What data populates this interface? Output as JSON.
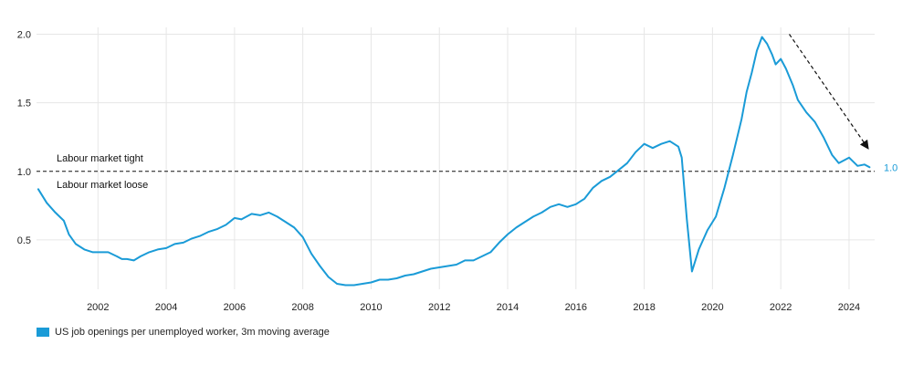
{
  "chart_data": {
    "type": "line",
    "title": "",
    "xlabel": "",
    "ylabel": "",
    "xlim": [
      2000.2,
      2024.75
    ],
    "ylim": [
      0.14,
      2.05
    ],
    "x_ticks": [
      "2002",
      "2004",
      "2006",
      "2008",
      "2010",
      "2012",
      "2014",
      "2016",
      "2018",
      "2020",
      "2022",
      "2024"
    ],
    "y_ticks": [
      "0.5",
      "1.0",
      "1.5",
      "2.0"
    ],
    "grid": true,
    "legend_position": "bottom-left",
    "colors": {
      "series": "#1a9bd7",
      "reference": "#111111",
      "grid": "#e6e6e6"
    },
    "reference_line": {
      "y": 1.0
    },
    "annotations": {
      "tight": "Labour market tight",
      "loose": "Labour market loose",
      "end_value": "1.0"
    },
    "arrow": {
      "from": [
        2022.25,
        2.0
      ],
      "to": [
        2024.55,
        1.17
      ]
    },
    "series": [
      {
        "name": "US job openings per unemployed worker, 3m moving average",
        "points": [
          [
            2000.25,
            0.87
          ],
          [
            2000.5,
            0.77
          ],
          [
            2000.75,
            0.7
          ],
          [
            2001.0,
            0.64
          ],
          [
            2001.15,
            0.54
          ],
          [
            2001.35,
            0.47
          ],
          [
            2001.6,
            0.43
          ],
          [
            2001.85,
            0.41
          ],
          [
            2002.1,
            0.41
          ],
          [
            2002.3,
            0.41
          ],
          [
            2002.55,
            0.38
          ],
          [
            2002.7,
            0.36
          ],
          [
            2002.85,
            0.36
          ],
          [
            2003.05,
            0.35
          ],
          [
            2003.25,
            0.38
          ],
          [
            2003.5,
            0.41
          ],
          [
            2003.75,
            0.43
          ],
          [
            2004.0,
            0.44
          ],
          [
            2004.25,
            0.47
          ],
          [
            2004.5,
            0.48
          ],
          [
            2004.75,
            0.51
          ],
          [
            2005.0,
            0.53
          ],
          [
            2005.25,
            0.56
          ],
          [
            2005.5,
            0.58
          ],
          [
            2005.75,
            0.61
          ],
          [
            2006.0,
            0.66
          ],
          [
            2006.2,
            0.65
          ],
          [
            2006.35,
            0.67
          ],
          [
            2006.5,
            0.69
          ],
          [
            2006.75,
            0.68
          ],
          [
            2007.0,
            0.7
          ],
          [
            2007.25,
            0.67
          ],
          [
            2007.5,
            0.63
          ],
          [
            2007.75,
            0.59
          ],
          [
            2008.0,
            0.52
          ],
          [
            2008.25,
            0.4
          ],
          [
            2008.5,
            0.31
          ],
          [
            2008.75,
            0.23
          ],
          [
            2009.0,
            0.18
          ],
          [
            2009.25,
            0.17
          ],
          [
            2009.5,
            0.17
          ],
          [
            2009.75,
            0.18
          ],
          [
            2010.0,
            0.19
          ],
          [
            2010.25,
            0.21
          ],
          [
            2010.5,
            0.21
          ],
          [
            2010.75,
            0.22
          ],
          [
            2011.0,
            0.24
          ],
          [
            2011.25,
            0.25
          ],
          [
            2011.5,
            0.27
          ],
          [
            2011.75,
            0.29
          ],
          [
            2012.0,
            0.3
          ],
          [
            2012.25,
            0.31
          ],
          [
            2012.5,
            0.32
          ],
          [
            2012.75,
            0.35
          ],
          [
            2013.0,
            0.35
          ],
          [
            2013.25,
            0.38
          ],
          [
            2013.5,
            0.41
          ],
          [
            2013.75,
            0.48
          ],
          [
            2014.0,
            0.54
          ],
          [
            2014.25,
            0.59
          ],
          [
            2014.5,
            0.63
          ],
          [
            2014.75,
            0.67
          ],
          [
            2015.0,
            0.7
          ],
          [
            2015.25,
            0.74
          ],
          [
            2015.5,
            0.76
          ],
          [
            2015.75,
            0.74
          ],
          [
            2016.0,
            0.76
          ],
          [
            2016.25,
            0.8
          ],
          [
            2016.5,
            0.88
          ],
          [
            2016.75,
            0.93
          ],
          [
            2017.0,
            0.96
          ],
          [
            2017.25,
            1.01
          ],
          [
            2017.5,
            1.06
          ],
          [
            2017.75,
            1.14
          ],
          [
            2018.0,
            1.2
          ],
          [
            2018.25,
            1.17
          ],
          [
            2018.5,
            1.2
          ],
          [
            2018.75,
            1.22
          ],
          [
            2019.0,
            1.18
          ],
          [
            2019.1,
            1.1
          ],
          [
            2019.25,
            0.65
          ],
          [
            2019.4,
            0.27
          ],
          [
            2019.6,
            0.43
          ],
          [
            2019.85,
            0.57
          ],
          [
            2020.1,
            0.67
          ],
          [
            2020.35,
            0.88
          ],
          [
            2020.6,
            1.12
          ],
          [
            2020.85,
            1.38
          ],
          [
            2021.0,
            1.58
          ],
          [
            2021.15,
            1.72
          ],
          [
            2021.3,
            1.88
          ],
          [
            2021.45,
            1.98
          ],
          [
            2021.6,
            1.93
          ],
          [
            2021.75,
            1.85
          ],
          [
            2021.85,
            1.78
          ],
          [
            2022.0,
            1.82
          ],
          [
            2022.15,
            1.75
          ],
          [
            2022.35,
            1.63
          ],
          [
            2022.5,
            1.52
          ],
          [
            2022.75,
            1.43
          ],
          [
            2023.0,
            1.36
          ],
          [
            2023.25,
            1.25
          ],
          [
            2023.5,
            1.12
          ],
          [
            2023.7,
            1.06
          ],
          [
            2024.0,
            1.1
          ],
          [
            2024.25,
            1.04
          ],
          [
            2024.45,
            1.05
          ],
          [
            2024.6,
            1.03
          ]
        ]
      }
    ]
  }
}
